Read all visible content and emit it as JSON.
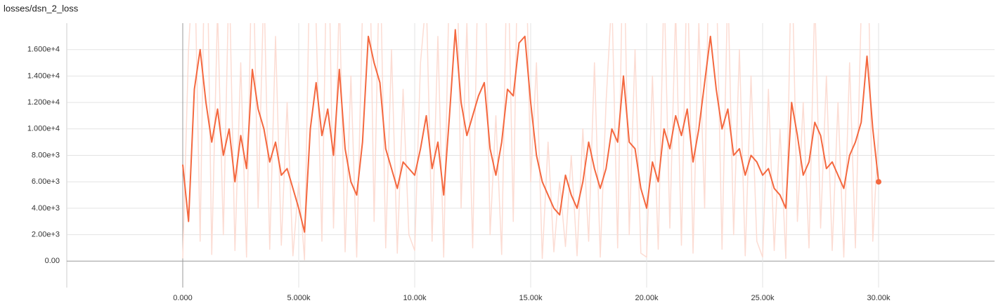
{
  "chart_data": {
    "type": "line",
    "title": "losses/dsn_2_loss",
    "x": [
      0,
      250,
      500,
      750,
      1000,
      1250,
      1500,
      1750,
      2000,
      2250,
      2500,
      2750,
      3000,
      3250,
      3500,
      3750,
      4000,
      4250,
      4500,
      4750,
      5000,
      5250,
      5500,
      5750,
      6000,
      6250,
      6500,
      6750,
      7000,
      7250,
      7500,
      7750,
      8000,
      8250,
      8500,
      8750,
      9000,
      9250,
      9500,
      9750,
      10000,
      10250,
      10500,
      10750,
      11000,
      11250,
      11500,
      11750,
      12000,
      12250,
      12500,
      12750,
      13000,
      13250,
      13500,
      13750,
      14000,
      14250,
      14500,
      14750,
      15000,
      15250,
      15500,
      15750,
      16000,
      16250,
      16500,
      16750,
      17000,
      17250,
      17500,
      17750,
      18000,
      18250,
      18500,
      18750,
      19000,
      19250,
      19500,
      19750,
      20000,
      20250,
      20500,
      20750,
      21000,
      21250,
      21500,
      21750,
      22000,
      22250,
      22500,
      22750,
      23000,
      23250,
      23500,
      23750,
      24000,
      24250,
      24500,
      24750,
      25000,
      25250,
      25500,
      25750,
      26000,
      26250,
      26500,
      26750,
      27000,
      27250,
      27500,
      27750,
      28000,
      28250,
      28500,
      28750,
      29000,
      29250,
      29500,
      29750,
      30000
    ],
    "series": [
      {
        "color": "#fcdcd3",
        "values": [
          200,
          16000,
          24000,
          1500,
          30000,
          500,
          19000,
          2000,
          22000,
          800,
          15000,
          300,
          26000,
          4000,
          21000,
          900,
          17000,
          1200,
          12000,
          400,
          6000,
          100,
          25000,
          18000,
          1500,
          28000,
          2500,
          20000,
          700,
          14000,
          300,
          19000,
          30000,
          3000,
          24000,
          1000,
          16000,
          600,
          13000,
          2000,
          800,
          15000,
          20000,
          1500,
          17000,
          300,
          22000,
          32000,
          4000,
          18000,
          1000,
          24000,
          26000,
          2000,
          11000,
          500,
          25000,
          3000,
          30000,
          28000,
          6000,
          15000,
          200,
          9000,
          700,
          6000,
          1100,
          8000,
          400,
          10000,
          1500,
          15000,
          300,
          12000,
          20000,
          1000,
          26000,
          2000,
          16000,
          600,
          300,
          14000,
          900,
          21000,
          2500,
          19000,
          1200,
          23000,
          600,
          18000,
          4000,
          30000,
          22000,
          900,
          21000,
          2000,
          16000,
          400,
          14000,
          1500,
          300,
          13000,
          800,
          10000,
          200,
          24000,
          3000,
          12000,
          1000,
          20000,
          2500,
          14000,
          800,
          12000,
          300,
          15000,
          1000,
          19000,
          28000,
          1500,
          10000
        ]
      },
      {
        "color": "#f4683f",
        "values": [
          7300,
          3000,
          13000,
          16000,
          12000,
          9000,
          11500,
          8000,
          10000,
          6000,
          9500,
          7000,
          14500,
          11500,
          10000,
          7500,
          9000,
          6500,
          7000,
          5500,
          4000,
          2200,
          10000,
          13500,
          9500,
          11500,
          8000,
          14500,
          8500,
          6000,
          5000,
          9000,
          17000,
          15000,
          13500,
          8500,
          7000,
          5500,
          7500,
          7000,
          6500,
          8500,
          11000,
          7000,
          9000,
          5000,
          11000,
          17500,
          12000,
          9500,
          11000,
          12500,
          13500,
          8500,
          6500,
          9000,
          13000,
          12500,
          16500,
          17000,
          12000,
          8000,
          6000,
          5000,
          4000,
          3500,
          6500,
          5000,
          4000,
          6000,
          9000,
          7000,
          5500,
          7000,
          10000,
          9000,
          14000,
          9000,
          8500,
          5500,
          4000,
          7500,
          6000,
          10000,
          8500,
          11000,
          9500,
          11500,
          7500,
          10000,
          13500,
          17000,
          13000,
          10000,
          11500,
          8000,
          8500,
          6500,
          8000,
          7500,
          6500,
          7000,
          5500,
          5000,
          4000,
          12000,
          9500,
          6500,
          7500,
          10500,
          9500,
          7000,
          7500,
          6500,
          5500,
          8000,
          9000,
          10500,
          15500,
          10000,
          6000
        ]
      }
    ],
    "xlim": [
      -5000,
      35000
    ],
    "ylim": [
      -2000,
      18000
    ],
    "xticks": [
      {
        "value": 0,
        "label": "0.000"
      },
      {
        "value": 5000,
        "label": "5.000k"
      },
      {
        "value": 10000,
        "label": "10.00k"
      },
      {
        "value": 15000,
        "label": "15.00k"
      },
      {
        "value": 20000,
        "label": "20.00k"
      },
      {
        "value": 25000,
        "label": "25.00k"
      },
      {
        "value": 30000,
        "label": "30.00k"
      }
    ],
    "yticks": [
      {
        "value": 0,
        "label": "0.00"
      },
      {
        "value": 2000,
        "label": "2.00e+3"
      },
      {
        "value": 4000,
        "label": "4.00e+3"
      },
      {
        "value": 6000,
        "label": "6.00e+3"
      },
      {
        "value": 8000,
        "label": "8.00e+3"
      },
      {
        "value": 10000,
        "label": "1.000e+4"
      },
      {
        "value": 12000,
        "label": "1.200e+4"
      },
      {
        "value": 14000,
        "label": "1.400e+4"
      },
      {
        "value": 16000,
        "label": "1.600e+4"
      }
    ],
    "grid": true
  }
}
